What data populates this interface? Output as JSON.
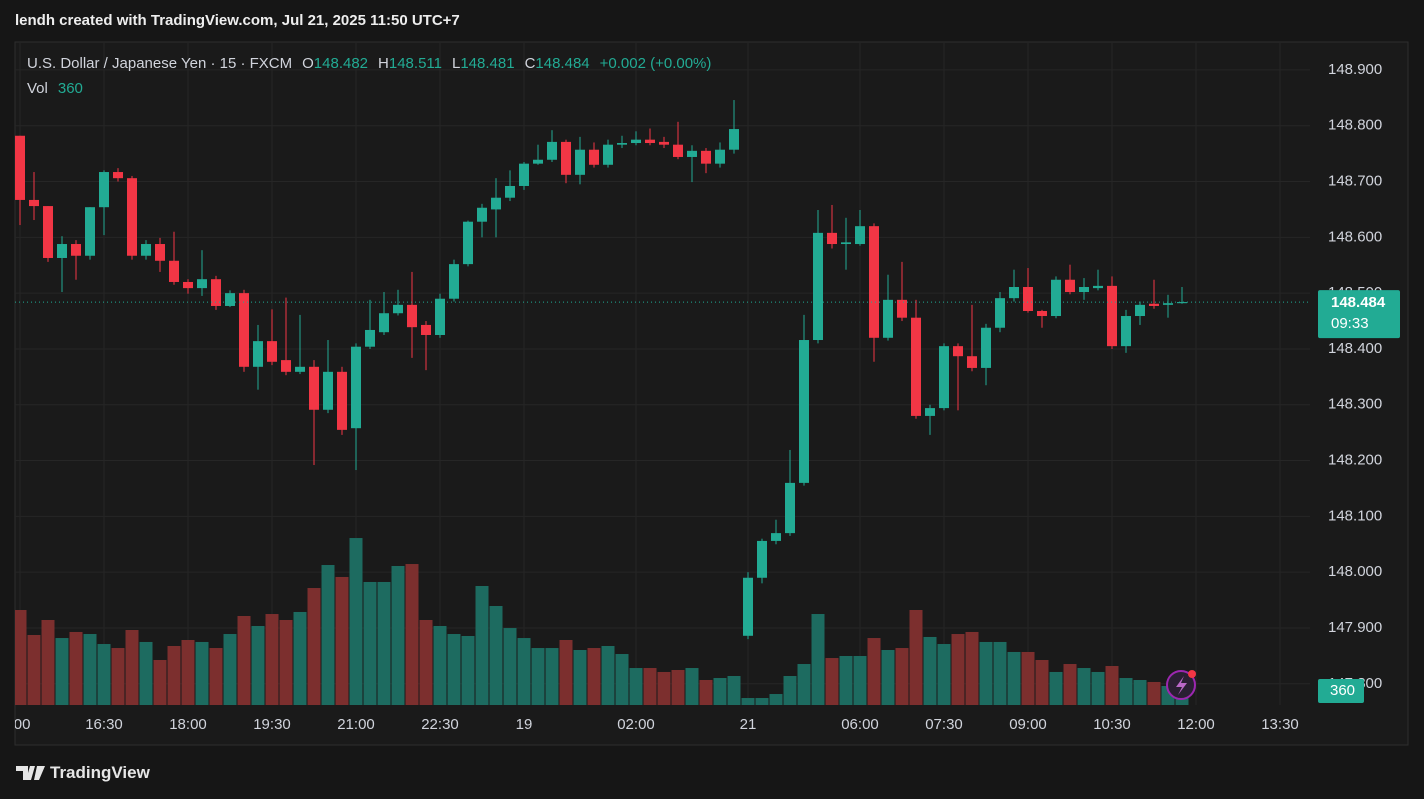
{
  "attribution": "lendh created with TradingView.com, Jul 21, 2025 11:50 UTC+7",
  "footer": "TradingView",
  "chart_data": {
    "type": "candlestick",
    "title": "U.S. Dollar / Japanese Yen · 15 · FXCM",
    "ohlc_labels": [
      "O",
      "H",
      "L",
      "C"
    ],
    "change": "+0.002 (+0.00%)",
    "volume_label": "Vol",
    "countdown": "09:33",
    "up_color": "#22ab94",
    "down_color": "#f23645",
    "volume_up_color": "#1d6b60",
    "volume_down_color": "#7c2f2e",
    "grid": true,
    "open": [
      148.782,
      148.667,
      148.656,
      148.563,
      148.588,
      148.567,
      148.654,
      148.717,
      148.706,
      148.567,
      148.588,
      148.558,
      148.52,
      148.509,
      148.525,
      148.477,
      148.5,
      148.368,
      148.414,
      148.38,
      148.359,
      148.368,
      148.291,
      148.359,
      148.258,
      148.404,
      148.43,
      148.464,
      148.479,
      148.443,
      148.425,
      148.49,
      148.552,
      148.628,
      148.65,
      148.671,
      148.692,
      148.732,
      148.739,
      148.771,
      148.712,
      148.757,
      148.73,
      148.766,
      148.769,
      148.775,
      148.771,
      148.766,
      148.744,
      148.755,
      148.732,
      148.757,
      147.886,
      147.99,
      148.056,
      148.07,
      148.16,
      148.416,
      148.608,
      148.588,
      148.588,
      148.62,
      148.42,
      148.488,
      148.456,
      148.28,
      148.294,
      148.405,
      148.387,
      148.366,
      148.438,
      148.491,
      148.511,
      148.468,
      148.459,
      148.524,
      148.502,
      148.509,
      148.513,
      148.405,
      148.459,
      148.481,
      148.479,
      148.482
    ],
    "high": [
      148.782,
      148.717,
      148.656,
      148.602,
      148.595,
      148.654,
      148.72,
      148.724,
      148.71,
      148.595,
      148.599,
      148.61,
      148.525,
      148.577,
      148.531,
      148.505,
      148.506,
      148.443,
      148.471,
      148.492,
      148.461,
      148.38,
      148.416,
      148.368,
      148.41,
      148.488,
      148.502,
      148.506,
      148.538,
      148.45,
      148.499,
      148.56,
      148.63,
      148.66,
      148.706,
      148.72,
      148.735,
      148.766,
      148.792,
      148.775,
      148.78,
      148.77,
      148.775,
      148.782,
      148.79,
      148.795,
      148.78,
      148.807,
      148.765,
      148.76,
      148.77,
      148.846,
      148.0,
      148.06,
      148.094,
      148.219,
      148.461,
      148.649,
      148.658,
      148.635,
      148.649,
      148.625,
      148.533,
      148.556,
      148.488,
      148.3,
      148.41,
      148.41,
      148.479,
      148.445,
      148.502,
      148.542,
      148.545,
      148.47,
      148.53,
      148.551,
      148.527,
      148.542,
      148.53,
      148.47,
      148.485,
      148.524,
      148.497,
      148.511
    ],
    "low": [
      148.622,
      148.631,
      148.556,
      148.502,
      148.524,
      148.56,
      148.604,
      148.7,
      148.56,
      148.56,
      148.538,
      148.515,
      148.499,
      148.495,
      148.47,
      148.475,
      148.359,
      148.327,
      148.371,
      148.353,
      148.355,
      148.192,
      148.285,
      148.246,
      148.183,
      148.4,
      148.425,
      148.46,
      148.384,
      148.362,
      148.42,
      148.485,
      148.548,
      148.6,
      148.6,
      148.665,
      148.685,
      148.73,
      148.735,
      148.697,
      148.695,
      148.725,
      148.725,
      148.76,
      148.765,
      148.765,
      148.76,
      148.74,
      148.699,
      148.715,
      148.725,
      148.75,
      147.88,
      147.98,
      148.05,
      148.065,
      148.155,
      148.41,
      148.58,
      148.542,
      148.585,
      148.377,
      148.415,
      148.45,
      148.275,
      148.246,
      148.29,
      148.29,
      148.36,
      148.335,
      148.43,
      148.485,
      148.465,
      148.438,
      148.455,
      148.498,
      148.488,
      148.505,
      148.4,
      148.393,
      148.443,
      148.472,
      148.456,
      148.481
    ],
    "close": [
      148.667,
      148.656,
      148.563,
      148.588,
      148.567,
      148.654,
      148.717,
      148.706,
      148.567,
      148.588,
      148.558,
      148.52,
      148.509,
      148.525,
      148.477,
      148.5,
      148.368,
      148.414,
      148.377,
      148.359,
      148.368,
      148.291,
      148.359,
      148.255,
      148.404,
      148.434,
      148.464,
      148.479,
      148.439,
      148.425,
      148.49,
      148.552,
      148.628,
      148.653,
      148.671,
      148.692,
      148.732,
      148.739,
      148.771,
      148.712,
      148.757,
      148.73,
      148.766,
      148.769,
      148.775,
      148.769,
      148.766,
      148.744,
      148.755,
      148.732,
      148.757,
      148.794,
      147.99,
      148.056,
      148.07,
      148.16,
      148.416,
      148.608,
      148.588,
      148.591,
      148.62,
      148.42,
      148.488,
      148.456,
      148.28,
      148.294,
      148.405,
      148.387,
      148.366,
      148.438,
      148.491,
      148.511,
      148.468,
      148.459,
      148.524,
      148.502,
      148.511,
      148.513,
      148.405,
      148.459,
      148.479,
      148.477,
      148.482,
      148.484
    ],
    "volume": [
      2014,
      1484,
      1802,
      1420,
      1548,
      1505,
      1293,
      1208,
      1590,
      1336,
      954,
      1251,
      1378,
      1336,
      1208,
      1505,
      1887,
      1675,
      1929,
      1802,
      1972,
      2480,
      2968,
      2714,
      3540,
      2608,
      2608,
      2947,
      2989,
      1802,
      1675,
      1505,
      1463,
      2523,
      2099,
      1632,
      1420,
      1208,
      1208,
      1378,
      1166,
      1208,
      1251,
      1081,
      784,
      784,
      700,
      742,
      784,
      530,
      572,
      615,
      148,
      148,
      233,
      615,
      869,
      1929,
      996,
      1039,
      1039,
      1420,
      1166,
      1208,
      2014,
      1442,
      1293,
      1505,
      1548,
      1336,
      1336,
      1124,
      1124,
      954,
      700,
      869,
      784,
      700,
      827,
      572,
      530,
      488,
      403,
      360
    ],
    "xlim": [
      -0.357,
      92.143
    ],
    "xticks": [
      {
        "value": 0,
        "label": ":00"
      },
      {
        "value": 6,
        "label": "16:30"
      },
      {
        "value": 12,
        "label": "18:00"
      },
      {
        "value": 18,
        "label": "19:30"
      },
      {
        "value": 24,
        "label": "21:00"
      },
      {
        "value": 30,
        "label": "22:30"
      },
      {
        "value": 36,
        "label": "19"
      },
      {
        "value": 44,
        "label": "02:00"
      },
      {
        "value": 52,
        "label": "21"
      },
      {
        "value": 60,
        "label": "06:00"
      },
      {
        "value": 66,
        "label": "07:30"
      },
      {
        "value": 72,
        "label": "09:00"
      },
      {
        "value": 78,
        "label": "10:30"
      },
      {
        "value": 84,
        "label": "12:00"
      },
      {
        "value": 90,
        "label": "13:30"
      }
    ],
    "ylim": [
      147.762,
      148.95
    ],
    "yticks": [
      {
        "value": 147.8,
        "label": "147.800"
      },
      {
        "value": 147.9,
        "label": "147.900"
      },
      {
        "value": 148.0,
        "label": "148.000"
      },
      {
        "value": 148.1,
        "label": "148.100"
      },
      {
        "value": 148.2,
        "label": "148.200"
      },
      {
        "value": 148.3,
        "label": "148.300"
      },
      {
        "value": 148.4,
        "label": "148.400"
      },
      {
        "value": 148.5,
        "label": "148.500"
      },
      {
        "value": 148.6,
        "label": "148.600"
      },
      {
        "value": 148.7,
        "label": "148.700"
      },
      {
        "value": 148.8,
        "label": "148.800"
      },
      {
        "value": 148.9,
        "label": "148.900"
      }
    ],
    "y2lim": [
      0,
      14056
    ]
  }
}
